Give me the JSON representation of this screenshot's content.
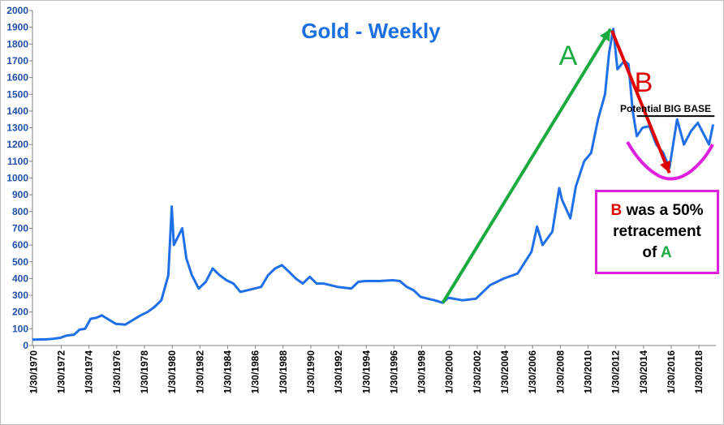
{
  "chart_data": {
    "type": "line",
    "title": "Gold - Weekly",
    "xlabel": "",
    "ylabel": "",
    "ylim": [
      0,
      2000
    ],
    "yticks": [
      0,
      100,
      200,
      300,
      400,
      500,
      600,
      700,
      800,
      900,
      1000,
      1100,
      1200,
      1300,
      1400,
      1500,
      1600,
      1700,
      1800,
      1900,
      2000
    ],
    "xlim": [
      1970.0,
      2019.3
    ],
    "xtick_labels": [
      "1/30/1970",
      "1/30/1972",
      "1/30/1974",
      "1/30/1976",
      "1/30/1978",
      "1/30/1980",
      "1/30/1982",
      "1/30/1984",
      "1/30/1986",
      "1/30/1988",
      "1/30/1990",
      "1/30/1992",
      "1/30/1994",
      "1/30/1996",
      "1/30/1998",
      "1/30/2000",
      "1/30/2002",
      "1/30/2004",
      "1/30/2006",
      "1/30/2008",
      "1/30/2010",
      "1/30/2012",
      "1/30/2014",
      "1/30/2016",
      "1/30/2018"
    ],
    "grid": false,
    "legend": "none",
    "series": [
      {
        "color": "#1f6fe8",
        "x": [
          1970.0,
          1971.0,
          1971.5,
          1972.0,
          1972.5,
          1973.0,
          1973.4,
          1973.8,
          1974.2,
          1974.6,
          1975.0,
          1975.5,
          1976.0,
          1976.7,
          1977.2,
          1977.8,
          1978.3,
          1978.8,
          1979.3,
          1979.8,
          1980.05,
          1980.2,
          1980.5,
          1980.8,
          1981.1,
          1981.5,
          1982.0,
          1982.5,
          1983.0,
          1983.5,
          1984.0,
          1984.5,
          1985.0,
          1985.5,
          1986.0,
          1986.5,
          1987.0,
          1987.5,
          1988.0,
          1988.5,
          1989.0,
          1989.5,
          1990.0,
          1990.5,
          1991.0,
          1992.0,
          1993.0,
          1993.5,
          1994.0,
          1995.0,
          1996.0,
          1996.5,
          1997.0,
          1997.5,
          1998.0,
          1999.0,
          1999.6,
          2000.0,
          2001.0,
          2002.0,
          2003.0,
          2004.0,
          2005.0,
          2006.0,
          2006.4,
          2006.8,
          2007.5,
          2008.0,
          2008.2,
          2008.8,
          2009.2,
          2009.8,
          2010.3,
          2010.8,
          2011.3,
          2011.6,
          2011.9,
          2012.2,
          2012.7,
          2013.0,
          2013.3,
          2013.6,
          2014.0,
          2014.5,
          2015.0,
          2015.5,
          2015.95,
          2016.5,
          2017.0,
          2017.5,
          2018.0,
          2018.5,
          2018.8,
          2019.1
        ],
        "values": [
          35,
          37,
          40,
          46,
          60,
          65,
          95,
          100,
          160,
          165,
          180,
          155,
          130,
          125,
          150,
          180,
          200,
          230,
          270,
          420,
          830,
          600,
          650,
          700,
          520,
          420,
          340,
          380,
          460,
          420,
          390,
          370,
          320,
          330,
          340,
          350,
          420,
          460,
          480,
          440,
          400,
          370,
          410,
          370,
          370,
          350,
          340,
          380,
          385,
          385,
          390,
          385,
          350,
          330,
          290,
          270,
          255,
          285,
          270,
          280,
          360,
          400,
          430,
          560,
          710,
          600,
          680,
          940,
          870,
          760,
          950,
          1100,
          1150,
          1350,
          1500,
          1750,
          1890,
          1650,
          1700,
          1680,
          1400,
          1250,
          1300,
          1310,
          1200,
          1150,
          1060,
          1350,
          1200,
          1280,
          1330,
          1250,
          1200,
          1320
        ]
      }
    ],
    "annotations": [
      {
        "label": "A",
        "from": [
          1999.6,
          255
        ],
        "to": [
          2011.7,
          1890
        ],
        "color": "#1aaa40"
      },
      {
        "label": "B",
        "from": [
          2011.8,
          1880
        ],
        "to": [
          2015.95,
          1030
        ],
        "color": "#e00000"
      },
      {
        "label": "Potential BIG BASE",
        "level": 1370,
        "from_x": 2013.6,
        "to_x": 2019.2,
        "color": "#000000"
      },
      {
        "label": "base-arc",
        "color": "#e020e0"
      }
    ]
  },
  "note": {
    "line1_a": "B",
    "line1_b": " was a 50%",
    "line2": "retracement",
    "line3_a": "of ",
    "line3_b": "A"
  }
}
